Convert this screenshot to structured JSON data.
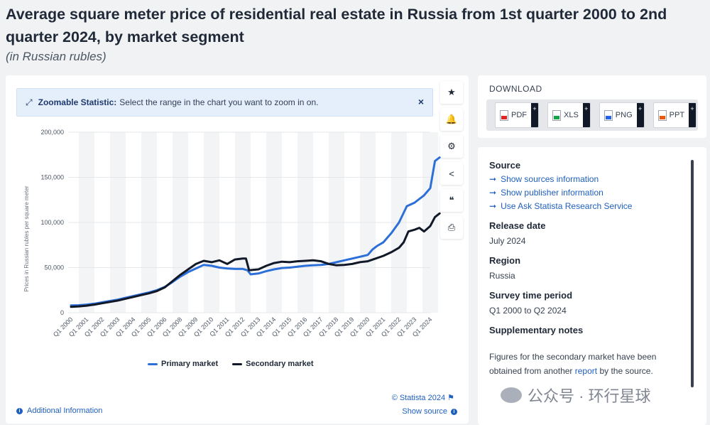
{
  "header": {
    "title": "Average square meter price of residential real estate in Russia from 1st quarter 2000 to 2nd quarter 2024, by market segment",
    "subtitle": "(in Russian rubles)"
  },
  "zoom_banner": {
    "label": "Zoomable Statistic:",
    "text": "Select the range in the chart you want to zoom in on.",
    "close": "×"
  },
  "toolbar": {
    "star": "★",
    "bell": "🔔",
    "gear": "⚙",
    "share": "<",
    "quote": "❝",
    "print": "⎙"
  },
  "chart_data": {
    "type": "line",
    "ylabel": "Prices in Russian rubles per square meter",
    "xlabel": "",
    "ylim": [
      0,
      200000
    ],
    "yticks": [
      0,
      50000,
      100000,
      150000,
      200000
    ],
    "ytick_labels": [
      "0",
      "50,000",
      "100,000",
      "150,000",
      "200,000"
    ],
    "categories": [
      "Q1 2000",
      "Q1 2001",
      "Q1 2002",
      "Q1 2003",
      "Q1 2004",
      "Q1 2005",
      "Q1 2006",
      "Q1 2008",
      "Q1 2009",
      "Q1 2010",
      "Q1 2011",
      "Q1 2012",
      "Q1 2013",
      "Q1 2014",
      "Q1 2015",
      "Q1 2016",
      "Q1 2017",
      "Q1 2018",
      "Q1 2019",
      "Q1 2020",
      "Q1 2021",
      "Q1 2022",
      "Q1 2023",
      "Q1 2024"
    ],
    "grid": true,
    "legend_position": "bottom",
    "series": [
      {
        "name": "Primary market",
        "color": "#2c6fd8",
        "points": [
          [
            0,
            8000
          ],
          [
            0.5,
            8300
          ],
          [
            1,
            9000
          ],
          [
            1.5,
            10000
          ],
          [
            2,
            11500
          ],
          [
            2.5,
            13000
          ],
          [
            3,
            14500
          ],
          [
            3.5,
            16500
          ],
          [
            4,
            18500
          ],
          [
            4.5,
            20500
          ],
          [
            5,
            22500
          ],
          [
            5.5,
            25000
          ],
          [
            6,
            28500
          ],
          [
            6.5,
            34000
          ],
          [
            7,
            40000
          ],
          [
            7.5,
            45000
          ],
          [
            8,
            49000
          ],
          [
            8.5,
            53000
          ],
          [
            9,
            52000
          ],
          [
            9.5,
            50000
          ],
          [
            10,
            49000
          ],
          [
            10.5,
            48500
          ],
          [
            11,
            48500
          ],
          [
            11.3,
            47000
          ],
          [
            11.5,
            42500
          ],
          [
            12,
            43500
          ],
          [
            12.5,
            46000
          ],
          [
            13,
            48000
          ],
          [
            13.5,
            49500
          ],
          [
            14,
            50000
          ],
          [
            14.5,
            51000
          ],
          [
            15,
            52000
          ],
          [
            15.5,
            52500
          ],
          [
            16,
            53000
          ],
          [
            16.5,
            54000
          ],
          [
            17,
            56000
          ],
          [
            17.5,
            58000
          ],
          [
            18,
            60000
          ],
          [
            18.5,
            62000
          ],
          [
            19,
            64000
          ],
          [
            19.3,
            70000
          ],
          [
            19.6,
            74000
          ],
          [
            20,
            78000
          ],
          [
            20.5,
            88000
          ],
          [
            21,
            100000
          ],
          [
            21.5,
            118000
          ],
          [
            22,
            122000
          ],
          [
            22.3,
            126000
          ],
          [
            22.6,
            130000
          ],
          [
            23,
            138000
          ],
          [
            23.3,
            168000
          ],
          [
            23.6,
            172000
          ]
        ]
      },
      {
        "name": "Secondary market",
        "color": "#111827",
        "points": [
          [
            0,
            6500
          ],
          [
            0.5,
            7000
          ],
          [
            1,
            7800
          ],
          [
            1.5,
            9000
          ],
          [
            2,
            10500
          ],
          [
            2.5,
            12000
          ],
          [
            3,
            13500
          ],
          [
            3.5,
            15500
          ],
          [
            4,
            17500
          ],
          [
            4.5,
            19500
          ],
          [
            5,
            21500
          ],
          [
            5.5,
            24000
          ],
          [
            6,
            28000
          ],
          [
            6.5,
            35000
          ],
          [
            7,
            42000
          ],
          [
            7.5,
            48000
          ],
          [
            8,
            54000
          ],
          [
            8.5,
            57500
          ],
          [
            9,
            56000
          ],
          [
            9.5,
            58000
          ],
          [
            10,
            54000
          ],
          [
            10.5,
            59000
          ],
          [
            11,
            60000
          ],
          [
            11.2,
            60000
          ],
          [
            11.4,
            47000
          ],
          [
            12,
            48000
          ],
          [
            12.5,
            52000
          ],
          [
            13,
            55000
          ],
          [
            13.5,
            56500
          ],
          [
            14,
            56000
          ],
          [
            14.5,
            57000
          ],
          [
            15,
            57500
          ],
          [
            15.5,
            58000
          ],
          [
            16,
            57000
          ],
          [
            16.5,
            54000
          ],
          [
            17,
            52500
          ],
          [
            17.5,
            53000
          ],
          [
            18,
            54000
          ],
          [
            18.5,
            56000
          ],
          [
            19,
            57000
          ],
          [
            19.5,
            60000
          ],
          [
            20,
            63000
          ],
          [
            20.5,
            67000
          ],
          [
            21,
            72000
          ],
          [
            21.3,
            78000
          ],
          [
            21.6,
            90000
          ],
          [
            22,
            92000
          ],
          [
            22.3,
            94000
          ],
          [
            22.6,
            90000
          ],
          [
            23,
            96000
          ],
          [
            23.3,
            106000
          ],
          [
            23.6,
            110000
          ]
        ]
      }
    ]
  },
  "footer": {
    "credit": "© Statista 2024",
    "flag": "⚑",
    "additional_info": "Additional Information",
    "show_source": "Show source",
    "info_icon": "i"
  },
  "download": {
    "title": "DOWNLOAD",
    "buttons": [
      {
        "label": "PDF",
        "plus": "+"
      },
      {
        "label": "XLS",
        "plus": "+"
      },
      {
        "label": "PNG",
        "plus": "+"
      },
      {
        "label": "PPT",
        "plus": "+"
      }
    ]
  },
  "info": {
    "source_heading": "Source",
    "links": [
      "Show sources information",
      "Show publisher information",
      "Use Ask Statista Research Service"
    ],
    "arrow": "➞",
    "release_heading": "Release date",
    "release_value": "July 2024",
    "region_heading": "Region",
    "region_value": "Russia",
    "survey_heading": "Survey time period",
    "survey_value": "Q1 2000 to Q2 2024",
    "notes_heading": "Supplementary notes",
    "notes_before": "Figures for the secondary market have been obtained from another ",
    "notes_link": "report",
    "notes_after": " by the source."
  },
  "watermark": {
    "text": "公众号 · 环行星球"
  }
}
